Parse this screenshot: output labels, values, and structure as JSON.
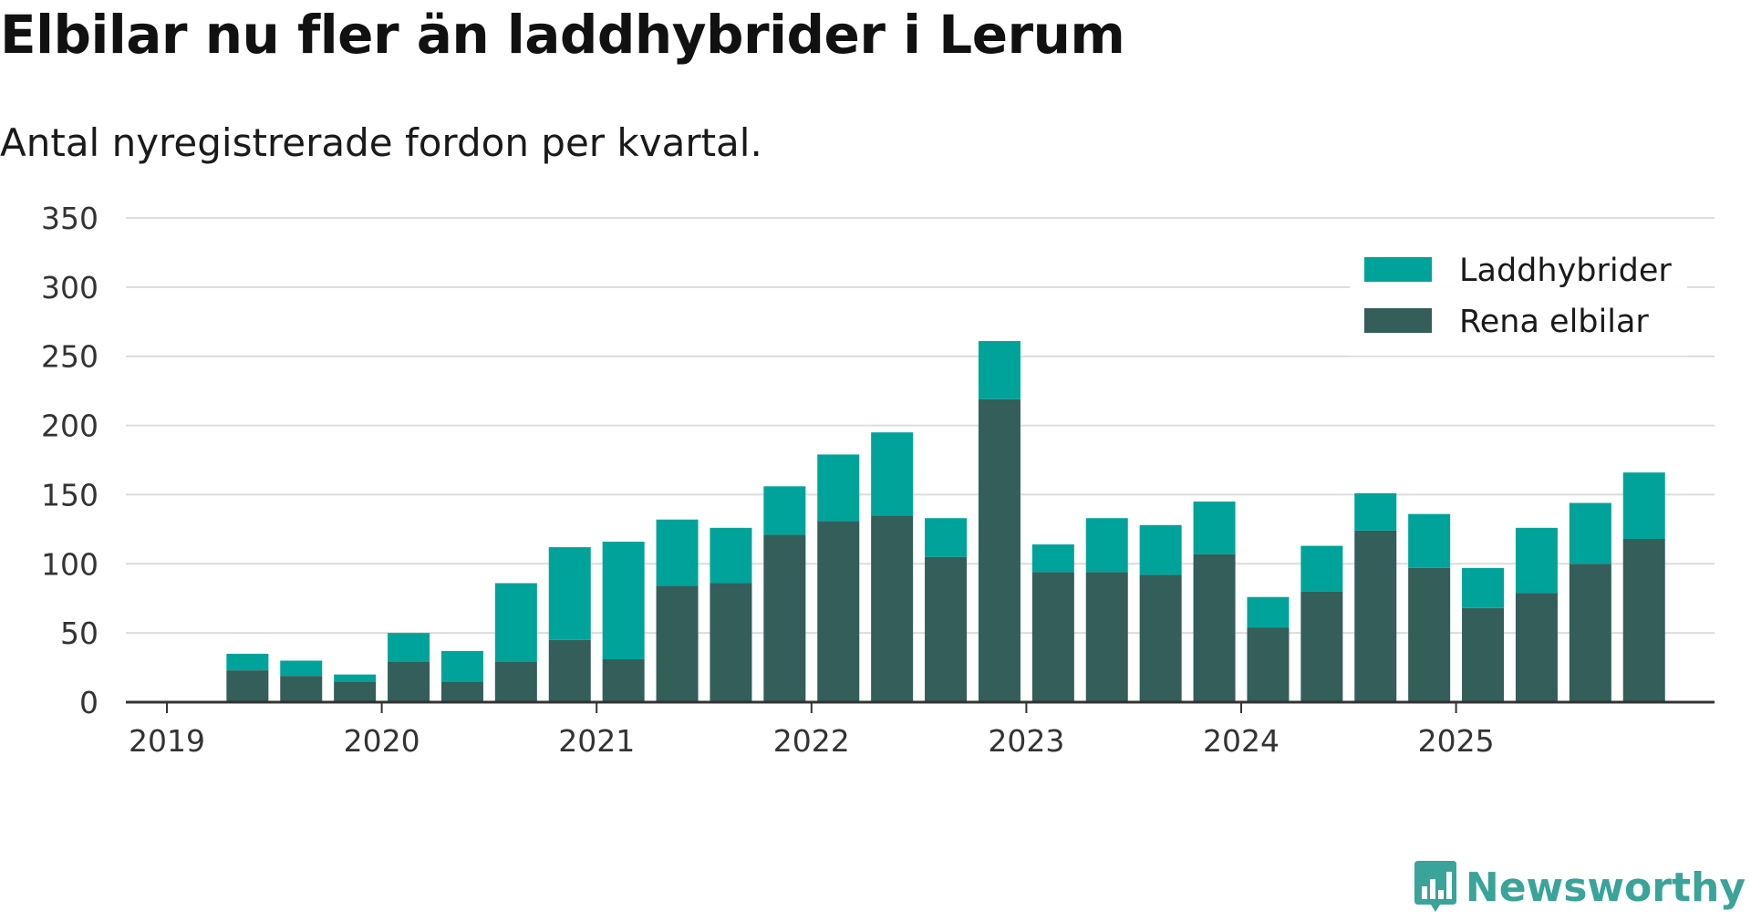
{
  "header": {
    "title": "Elbilar nu fler än laddhybrider i Lerum",
    "subtitle": "Antal nyregistrerade fordon per kvartal."
  },
  "brand": {
    "name": "Newsworthy",
    "icon": "newsworthy-logo-icon",
    "color": "#3aa39a"
  },
  "chart_data": {
    "type": "bar",
    "stacked": true,
    "title": "Elbilar nu fler än laddhybrider i Lerum",
    "subtitle": "Antal nyregistrerade fordon per kvartal.",
    "xlabel": "",
    "ylabel": "",
    "ylim": [
      0,
      350
    ],
    "yticks": [
      0,
      50,
      100,
      150,
      200,
      250,
      300,
      350
    ],
    "xticks": [
      "2019",
      "2020",
      "2021",
      "2022",
      "2023",
      "2024",
      "2025"
    ],
    "grid": true,
    "legend_position": "top-right",
    "categories": [
      "2019 Q2",
      "2019 Q3",
      "2019 Q4",
      "2020 Q1",
      "2020 Q2",
      "2020 Q3",
      "2020 Q4",
      "2021 Q1",
      "2021 Q2",
      "2021 Q3",
      "2021 Q4",
      "2022 Q1",
      "2022 Q2",
      "2022 Q3",
      "2022 Q4",
      "2023 Q1",
      "2023 Q2",
      "2023 Q3",
      "2023 Q4",
      "2024 Q1",
      "2024 Q2",
      "2024 Q3",
      "2024 Q4",
      "2025 Q1",
      "2025 Q2",
      "2025 Q3",
      "2025 Q4"
    ],
    "series": [
      {
        "name": "Rena elbilar",
        "color": "#335e5a",
        "values": [
          23,
          19,
          15,
          29,
          15,
          29,
          45,
          31,
          84,
          86,
          121,
          131,
          135,
          105,
          219,
          94,
          94,
          92,
          107,
          54,
          80,
          124,
          97,
          68,
          79,
          100,
          118
        ]
      },
      {
        "name": "Laddhybrider",
        "color": "#00a39a",
        "values": [
          12,
          11,
          5,
          21,
          22,
          57,
          67,
          85,
          48,
          40,
          35,
          48,
          60,
          28,
          42,
          20,
          39,
          36,
          38,
          22,
          33,
          27,
          39,
          29,
          47,
          44,
          48
        ]
      }
    ]
  }
}
